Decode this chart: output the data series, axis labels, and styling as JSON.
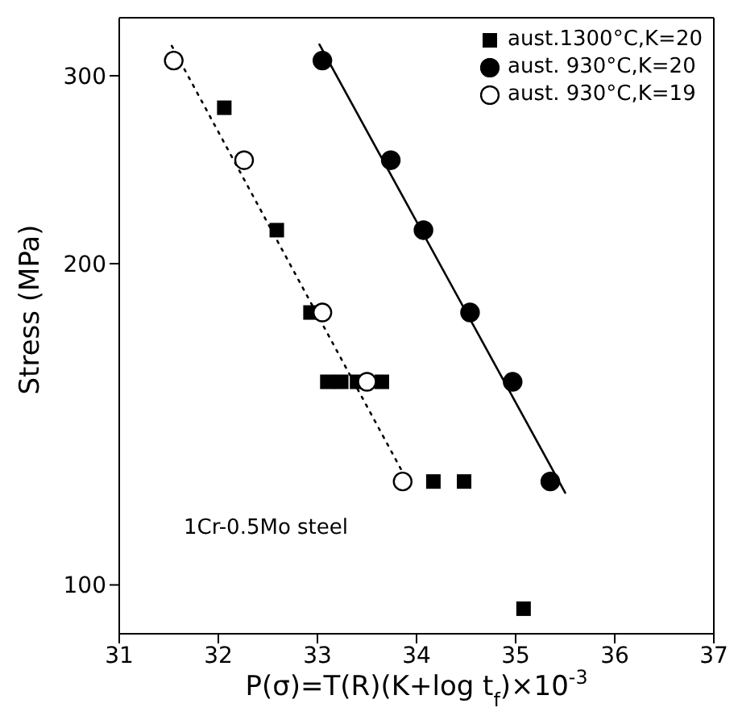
{
  "chart_data": {
    "type": "scatter",
    "xlabel": "P(σ)=T(R)(K+log t$_{f}$)×10$^{-3}$",
    "ylabel": "Stress (MPa)",
    "annotations": [
      "1Cr-0.5Mo steel"
    ],
    "xlim": [
      31,
      37
    ],
    "xticks": [
      31,
      32,
      33,
      34,
      35,
      36,
      37
    ],
    "ylim": [
      90,
      340
    ],
    "yticks": [
      100,
      200,
      300
    ],
    "log": "y",
    "legend": "top right",
    "series": [
      {
        "name": "aust.1300°C,K=20",
        "color": "#000000",
        "marker": "square",
        "x": [
          32.06,
          32.59,
          32.93,
          33.1,
          33.24,
          33.4,
          33.65,
          34.17,
          34.48,
          35.08
        ],
        "values": [
          280,
          215,
          180,
          155,
          155,
          155,
          155,
          125,
          125,
          95
        ]
      },
      {
        "name": "aust. 930°C,K=20",
        "color": "#000000",
        "marker": "circle",
        "x": [
          33.05,
          33.74,
          34.07,
          34.54,
          34.97,
          35.35
        ],
        "values": [
          310,
          250,
          215,
          180,
          155,
          125
        ]
      },
      {
        "name": "aust. 930°C,K=19",
        "color": "#ffffff",
        "marker": "circle",
        "x": [
          31.55,
          32.26,
          33.05,
          33.5,
          33.86
        ],
        "values": [
          310,
          250,
          180,
          155,
          125
        ]
      },
      {
        "type": "line",
        "color": "#000000",
        "line_style": "solid",
        "marker": "none",
        "x": [
          33.02,
          35.5
        ],
        "values": [
          321,
          122
        ]
      },
      {
        "type": "line",
        "color": "#000000",
        "line_style": "dotted",
        "marker": "none",
        "x": [
          31.53,
          33.89
        ],
        "values": [
          320,
          126
        ]
      }
    ]
  }
}
